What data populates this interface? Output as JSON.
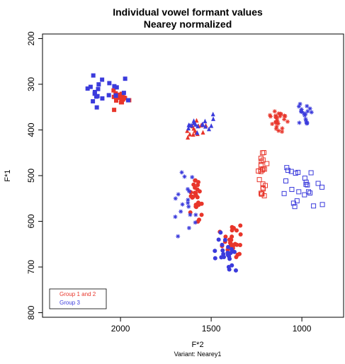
{
  "chart_data": {
    "type": "scatter",
    "title": "Individual vowel formant values",
    "subtitle": "Nearey normalized",
    "xlabel": "F*2",
    "ylabel": "F*1",
    "footnote": "Variant: Nearey1",
    "x_reversed": true,
    "y_reversed": true,
    "xlim": [
      2430,
      770
    ],
    "ylim": [
      190,
      810
    ],
    "x_ticks": [
      2000,
      1500,
      1000
    ],
    "y_ticks": [
      200,
      300,
      400,
      500,
      600,
      700,
      800
    ],
    "grid": false,
    "legend": {
      "position": "bottom-left",
      "entries": [
        {
          "label": "Group 1 and 2",
          "color": "#e8352a"
        },
        {
          "label": "Group 3",
          "color": "#3b3bdc"
        }
      ]
    },
    "series": [
      {
        "color": "#e8352a",
        "clusters": [
          {
            "marker": "square-filled",
            "cx": 2010,
            "cy": 330,
            "sx": 55,
            "sy": 18,
            "n": 18
          },
          {
            "marker": "triangle-filled",
            "cx": 1590,
            "cy": 400,
            "sx": 45,
            "sy": 15,
            "n": 14
          },
          {
            "marker": "circle-filled",
            "cx": 1590,
            "cy": 550,
            "sx": 30,
            "sy": 40,
            "n": 26
          },
          {
            "marker": "circle-filled",
            "cx": 1390,
            "cy": 650,
            "sx": 45,
            "sy": 40,
            "n": 26
          },
          {
            "marker": "square-open",
            "cx": 1220,
            "cy": 500,
            "sx": 25,
            "sy": 40,
            "n": 22
          },
          {
            "marker": "star",
            "cx": 1130,
            "cy": 380,
            "sx": 45,
            "sy": 20,
            "n": 26
          }
        ]
      },
      {
        "color": "#3b3bdc",
        "clusters": [
          {
            "marker": "square-filled",
            "cx": 2090,
            "cy": 310,
            "sx": 95,
            "sy": 30,
            "n": 22
          },
          {
            "marker": "triangle-filled",
            "cx": 1580,
            "cy": 385,
            "sx": 70,
            "sy": 18,
            "n": 18
          },
          {
            "marker": "star",
            "cx": 1650,
            "cy": 560,
            "sx": 55,
            "sy": 55,
            "n": 18
          },
          {
            "marker": "circle-filled",
            "cx": 1420,
            "cy": 680,
            "sx": 45,
            "sy": 45,
            "n": 24
          },
          {
            "marker": "square-open",
            "cx": 1000,
            "cy": 530,
            "sx": 90,
            "sy": 50,
            "n": 24
          },
          {
            "marker": "star",
            "cx": 975,
            "cy": 370,
            "sx": 35,
            "sy": 25,
            "n": 18
          }
        ]
      }
    ]
  }
}
